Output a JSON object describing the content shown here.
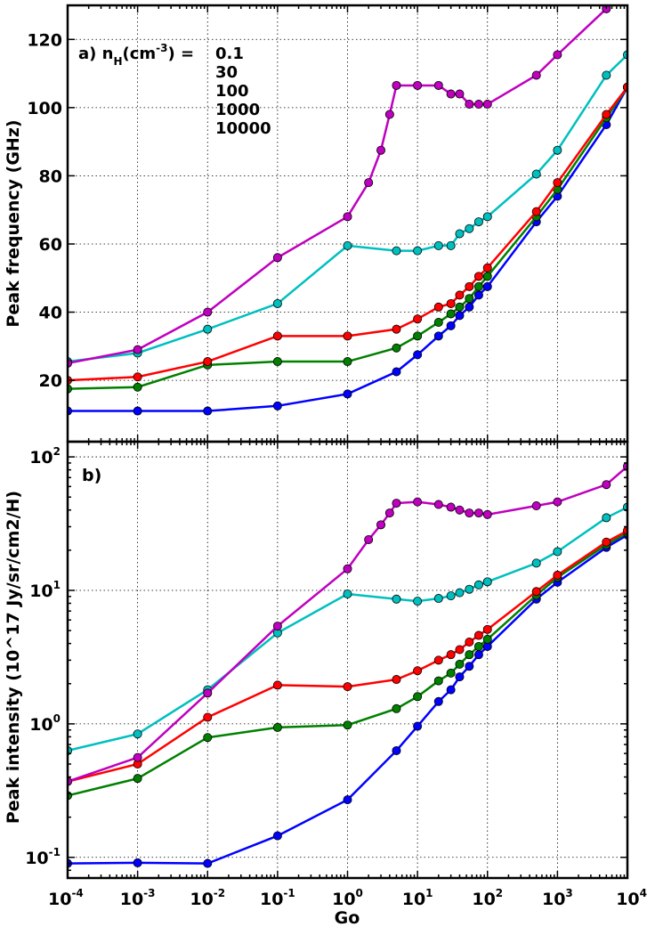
{
  "chart_data": [
    {
      "panel": "a",
      "type": "line",
      "title": "",
      "xlabel": "",
      "ylabel": "Peak frequency (GHz)",
      "xscale": "log",
      "yscale": "linear",
      "xlim": [
        0.0001,
        10000
      ],
      "ylim": [
        2,
        130
      ],
      "grid": true,
      "panel_label": "a)",
      "legend_title": {
        "base": "a) n",
        "sub": "H",
        "unit_open": "(cm",
        "unit_exp": "-3",
        "unit_close": ") ="
      },
      "legend_position": "top-left",
      "yticks": [
        20,
        40,
        60,
        80,
        100,
        120
      ],
      "series": [
        {
          "name": "0.1",
          "color": "#0000ff",
          "x": [
            0.0001,
            0.001,
            0.01,
            0.1,
            1,
            5,
            10,
            20,
            30,
            40,
            55,
            75,
            100,
            500,
            1000,
            5000,
            10000
          ],
          "y": [
            11,
            11,
            11,
            12.5,
            16,
            22.5,
            27.5,
            33,
            36,
            39,
            41.5,
            45,
            47.5,
            66.5,
            74,
            95,
            106
          ]
        },
        {
          "name": "30",
          "color": "#008000",
          "x": [
            0.0001,
            0.001,
            0.01,
            0.1,
            1,
            5,
            10,
            20,
            30,
            40,
            55,
            75,
            100,
            500,
            1000,
            5000,
            10000
          ],
          "y": [
            17.5,
            18,
            24.5,
            25.5,
            25.5,
            29.5,
            33,
            37,
            39.5,
            41.5,
            44,
            47.5,
            50.5,
            68,
            76,
            97,
            106
          ]
        },
        {
          "name": "100",
          "color": "#ff0000",
          "x": [
            0.0001,
            0.001,
            0.01,
            0.1,
            1,
            5,
            10,
            20,
            30,
            40,
            55,
            75,
            100,
            500,
            1000,
            5000,
            10000
          ],
          "y": [
            20,
            21,
            25.5,
            33,
            33,
            35,
            38,
            41.5,
            42.5,
            45,
            47.5,
            50.5,
            53,
            69.5,
            78,
            98,
            106
          ]
        },
        {
          "name": "1000",
          "color": "#00bfbf",
          "x": [
            0.0001,
            0.001,
            0.01,
            0.1,
            1,
            5,
            10,
            20,
            30,
            40,
            55,
            75,
            100,
            500,
            1000,
            5000,
            10000
          ],
          "y": [
            25.5,
            28,
            35,
            42.5,
            59.5,
            58,
            58,
            59.5,
            59.5,
            63,
            64.5,
            66.5,
            68,
            80.5,
            87.5,
            109.5,
            115.5
          ]
        },
        {
          "name": "10000",
          "color": "#bf00bf",
          "x": [
            0.0001,
            0.001,
            0.01,
            0.1,
            1,
            2,
            3,
            4,
            5,
            10,
            20,
            30,
            40,
            55,
            75,
            100,
            500,
            1000,
            5000
          ],
          "y": [
            25,
            29,
            40,
            56,
            68,
            78,
            87.5,
            98,
            106.5,
            106.5,
            106.5,
            104,
            104,
            101,
            101,
            101,
            109.5,
            115.5,
            129
          ]
        }
      ]
    },
    {
      "panel": "b",
      "type": "line",
      "title": "",
      "xlabel": "Go",
      "ylabel": "Peak intensity (10^17 Jy/sr/cm2/H)",
      "xscale": "log",
      "yscale": "log",
      "xlim": [
        0.0001,
        10000
      ],
      "ylim": [
        0.07,
        130
      ],
      "grid": true,
      "panel_label": "b)",
      "yticks": [
        {
          "base": "10",
          "exp": "-1",
          "value": 0.1
        },
        {
          "base": "10",
          "exp": "0",
          "value": 1
        },
        {
          "base": "10",
          "exp": "1",
          "value": 10
        },
        {
          "base": "10",
          "exp": "2",
          "value": 100
        }
      ],
      "xticks": [
        {
          "base": "10",
          "exp": "-4",
          "value": 0.0001
        },
        {
          "base": "10",
          "exp": "-3",
          "value": 0.001
        },
        {
          "base": "10",
          "exp": "-2",
          "value": 0.01
        },
        {
          "base": "10",
          "exp": "-1",
          "value": 0.1
        },
        {
          "base": "10",
          "exp": "0",
          "value": 1
        },
        {
          "base": "10",
          "exp": "1",
          "value": 10
        },
        {
          "base": "10",
          "exp": "2",
          "value": 100
        },
        {
          "base": "10",
          "exp": "3",
          "value": 1000
        },
        {
          "base": "10",
          "exp": "4",
          "value": 10000
        }
      ],
      "series": [
        {
          "name": "0.1",
          "color": "#0000ff",
          "x": [
            0.0001,
            0.001,
            0.01,
            0.1,
            1,
            5,
            10,
            20,
            30,
            40,
            55,
            75,
            100,
            500,
            1000,
            5000,
            10000
          ],
          "y": [
            0.09,
            0.091,
            0.09,
            0.145,
            0.27,
            0.63,
            0.96,
            1.47,
            1.8,
            2.25,
            2.7,
            3.3,
            3.8,
            8.6,
            11.5,
            21,
            26
          ]
        },
        {
          "name": "30",
          "color": "#008000",
          "x": [
            0.0001,
            0.001,
            0.01,
            0.1,
            1,
            5,
            10,
            20,
            30,
            40,
            55,
            75,
            100,
            500,
            1000,
            5000,
            10000
          ],
          "y": [
            0.29,
            0.39,
            0.79,
            0.94,
            0.98,
            1.3,
            1.6,
            2.1,
            2.4,
            2.8,
            3.3,
            3.8,
            4.3,
            9.2,
            12.5,
            22,
            27
          ]
        },
        {
          "name": "100",
          "color": "#ff0000",
          "x": [
            0.0001,
            0.001,
            0.01,
            0.1,
            1,
            5,
            10,
            20,
            30,
            40,
            55,
            75,
            100,
            500,
            1000,
            5000,
            10000
          ],
          "y": [
            0.37,
            0.5,
            1.12,
            1.95,
            1.9,
            2.15,
            2.5,
            3.0,
            3.3,
            3.6,
            4.1,
            4.6,
            5.1,
            9.8,
            13,
            23,
            28
          ]
        },
        {
          "name": "1000",
          "color": "#00bfbf",
          "x": [
            0.0001,
            0.001,
            0.01,
            0.1,
            1,
            5,
            10,
            20,
            30,
            40,
            55,
            75,
            100,
            500,
            1000,
            5000,
            10000
          ],
          "y": [
            0.63,
            0.84,
            1.8,
            4.8,
            9.4,
            8.6,
            8.3,
            8.7,
            9.1,
            9.6,
            10.2,
            11,
            11.6,
            16,
            19.5,
            35,
            42
          ]
        },
        {
          "name": "10000",
          "color": "#bf00bf",
          "x": [
            0.0001,
            0.001,
            0.01,
            0.1,
            1,
            2,
            3,
            4,
            5,
            10,
            20,
            30,
            40,
            55,
            75,
            100,
            500,
            1000,
            5000,
            10000
          ],
          "y": [
            0.37,
            0.56,
            1.7,
            5.4,
            14.5,
            24,
            31,
            38,
            45,
            46,
            44,
            42,
            40,
            38,
            38,
            37,
            43,
            46,
            62,
            85
          ]
        }
      ]
    }
  ]
}
